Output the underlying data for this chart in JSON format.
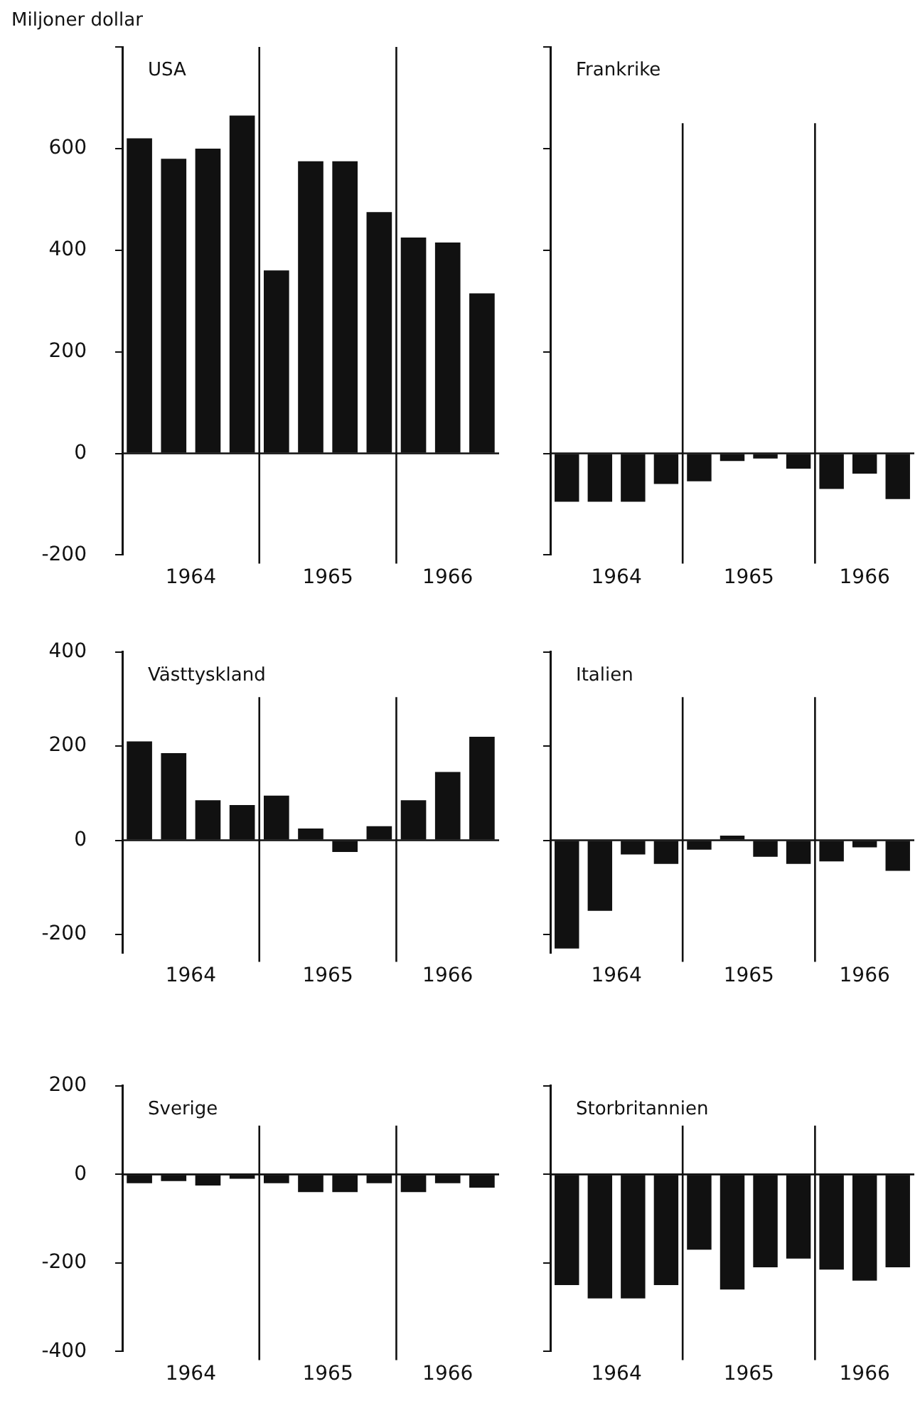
{
  "chart_data": [
    {
      "type": "bar",
      "title": "USA",
      "ylabel": "Miljoner dollar",
      "x": [
        1964.125,
        1964.375,
        1964.625,
        1964.875,
        1965.125,
        1965.375,
        1965.625,
        1965.875,
        1966.125,
        1966.375,
        1966.625
      ],
      "values": [
        620,
        580,
        600,
        665,
        360,
        575,
        575,
        475,
        425,
        415,
        315
      ],
      "color": "#111111",
      "xlim": [
        1964,
        1966.75
      ],
      "xticks": [
        {
          "value": 1964.5,
          "label": "1964"
        },
        {
          "value": 1965.5,
          "label": "1965"
        },
        {
          "value": 1966.375,
          "label": "1966"
        }
      ],
      "ylim": [
        -200,
        800
      ],
      "yticks": [
        -200,
        0,
        200,
        400,
        600,
        {
          "value": 800,
          "label": null
        }
      ],
      "grid": false,
      "legend": false,
      "ref_lines": [
        {
          "axis": "y",
          "value": 0,
          "color": "#111111"
        },
        {
          "axis": "x",
          "value": 1965,
          "color": "#111111"
        },
        {
          "axis": "x",
          "value": 1966,
          "color": "#111111"
        }
      ]
    },
    {
      "type": "bar",
      "title": "Frankrike",
      "x": [
        1964.125,
        1964.375,
        1964.625,
        1964.875,
        1965.125,
        1965.375,
        1965.625,
        1965.875,
        1966.125,
        1966.375,
        1966.625
      ],
      "values": [
        -95,
        -95,
        -95,
        -60,
        -55,
        -15,
        -10,
        -30,
        -70,
        -40,
        -90
      ],
      "color": "#111111",
      "xlim": [
        1964,
        1966.75
      ],
      "xticks": [
        {
          "value": 1964.5,
          "label": "1964"
        },
        {
          "value": 1965.5,
          "label": "1965"
        },
        {
          "value": 1966.375,
          "label": "1966"
        }
      ],
      "ylim": [
        -200,
        800
      ],
      "yticks": [
        -200,
        0,
        200,
        400,
        600,
        800
      ],
      "tick_labels": "x",
      "ref_lines": [
        {
          "axis": "y",
          "value": 0,
          "color": "#111111"
        },
        {
          "axis": "x",
          "value": 1965,
          "color": "#111111"
        },
        {
          "axis": "x",
          "value": 1966,
          "color": "#111111"
        }
      ]
    },
    {
      "type": "bar",
      "title": "Västtyskland",
      "x": [
        1964.125,
        1964.375,
        1964.625,
        1964.875,
        1965.125,
        1965.375,
        1965.625,
        1965.875,
        1966.125,
        1966.375,
        1966.625
      ],
      "values": [
        210,
        185,
        85,
        75,
        95,
        25,
        -25,
        30,
        85,
        145,
        220
      ],
      "color": "#111111",
      "xlim": [
        1964,
        1966.75
      ],
      "xticks": [
        {
          "value": 1964.5,
          "label": "1964"
        },
        {
          "value": 1965.5,
          "label": "1965"
        },
        {
          "value": 1966.375,
          "label": "1966"
        }
      ],
      "ylim": [
        -240,
        400
      ],
      "yticks": [
        -200,
        0,
        200,
        400
      ],
      "ref_lines": [
        {
          "axis": "y",
          "value": 0,
          "color": "#111111"
        },
        {
          "axis": "x",
          "value": 1965,
          "color": "#111111"
        },
        {
          "axis": "x",
          "value": 1966,
          "color": "#111111"
        }
      ]
    },
    {
      "type": "bar",
      "title": "Italien",
      "x": [
        1964.125,
        1964.375,
        1964.625,
        1964.875,
        1965.125,
        1965.375,
        1965.625,
        1965.875,
        1966.125,
        1966.375,
        1966.625
      ],
      "values": [
        -230,
        -150,
        -30,
        -50,
        -20,
        10,
        -35,
        -50,
        -45,
        -15,
        -65
      ],
      "color": "#111111",
      "xlim": [
        1964,
        1966.75
      ],
      "xticks": [
        {
          "value": 1964.5,
          "label": "1964"
        },
        {
          "value": 1965.5,
          "label": "1965"
        },
        {
          "value": 1966.375,
          "label": "1966"
        }
      ],
      "ylim": [
        -240,
        400
      ],
      "yticks": [
        -200,
        0,
        200,
        400
      ],
      "tick_labels": "x",
      "ref_lines": [
        {
          "axis": "y",
          "value": 0,
          "color": "#111111"
        },
        {
          "axis": "x",
          "value": 1965,
          "color": "#111111"
        },
        {
          "axis": "x",
          "value": 1966,
          "color": "#111111"
        }
      ]
    },
    {
      "type": "bar",
      "title": "Sverige",
      "x": [
        1964.125,
        1964.375,
        1964.625,
        1964.875,
        1965.125,
        1965.375,
        1965.625,
        1965.875,
        1966.125,
        1966.375,
        1966.625
      ],
      "values": [
        -20,
        -15,
        -25,
        -10,
        -20,
        -40,
        -40,
        -20,
        -40,
        -20,
        -30
      ],
      "color": "#111111",
      "xlim": [
        1964,
        1966.75
      ],
      "xticks": [
        {
          "value": 1964.5,
          "label": "1964"
        },
        {
          "value": 1965.5,
          "label": "1965"
        },
        {
          "value": 1966.375,
          "label": "1966"
        }
      ],
      "ylim": [
        -400,
        200
      ],
      "yticks": [
        -400,
        -200,
        0,
        200
      ],
      "ref_lines": [
        {
          "axis": "y",
          "value": 0,
          "color": "#111111"
        },
        {
          "axis": "x",
          "value": 1965,
          "color": "#111111"
        },
        {
          "axis": "x",
          "value": 1966,
          "color": "#111111"
        }
      ]
    },
    {
      "type": "bar",
      "title": "Storbritannien",
      "x": [
        1964.125,
        1964.375,
        1964.625,
        1964.875,
        1965.125,
        1965.375,
        1965.625,
        1965.875,
        1966.125,
        1966.375,
        1966.625
      ],
      "values": [
        -250,
        -280,
        -280,
        -250,
        -170,
        -260,
        -210,
        -190,
        -215,
        -240,
        -210
      ],
      "color": "#111111",
      "xlim": [
        1964,
        1966.75
      ],
      "xticks": [
        {
          "value": 1964.5,
          "label": "1964"
        },
        {
          "value": 1965.5,
          "label": "1965"
        },
        {
          "value": 1966.375,
          "label": "1966"
        }
      ],
      "ylim": [
        -400,
        200
      ],
      "yticks": [
        -400,
        -200,
        0,
        200
      ],
      "tick_labels": "x",
      "ref_lines": [
        {
          "axis": "y",
          "value": 0,
          "color": "#111111"
        },
        {
          "axis": "x",
          "value": 1965,
          "color": "#111111"
        },
        {
          "axis": "x",
          "value": 1966,
          "color": "#111111"
        }
      ]
    }
  ]
}
